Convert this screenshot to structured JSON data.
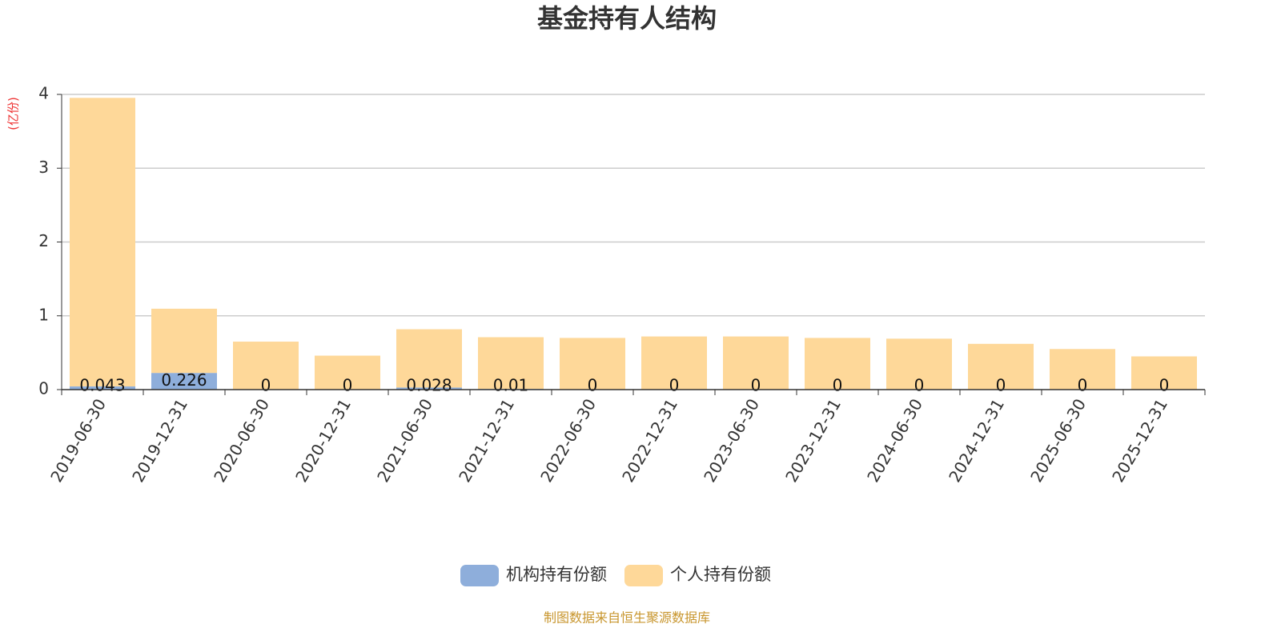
{
  "chart_data": {
    "type": "stacked_bar",
    "title": "基金持有人结构",
    "y_label": "(亿份)",
    "source": "制图数据来自恒生聚源数据库",
    "categories": [
      "2019-06-30",
      "2019-12-31",
      "2020-06-30",
      "2020-12-31",
      "2021-06-30",
      "2021-12-31",
      "2022-06-30",
      "2022-12-31",
      "2023-06-30",
      "2023-12-31",
      "2024-06-30",
      "2024-12-31",
      "2025-06-30",
      "2025-12-31"
    ],
    "series": [
      {
        "name": "机构持有份额",
        "color": "#8eaedb",
        "values": [
          0.043,
          0.226,
          0,
          0,
          0.028,
          0.01,
          0,
          0,
          0,
          0,
          0,
          0,
          0,
          0
        ]
      },
      {
        "name": "个人持有份额",
        "color": "#fed899",
        "values": [
          3.91,
          0.87,
          0.65,
          0.46,
          0.79,
          0.7,
          0.7,
          0.72,
          0.72,
          0.7,
          0.69,
          0.62,
          0.55,
          0.45
        ]
      }
    ],
    "ylim": [
      0,
      4
    ],
    "yticks": [
      0,
      1,
      2,
      3,
      4
    ],
    "grid": true
  }
}
